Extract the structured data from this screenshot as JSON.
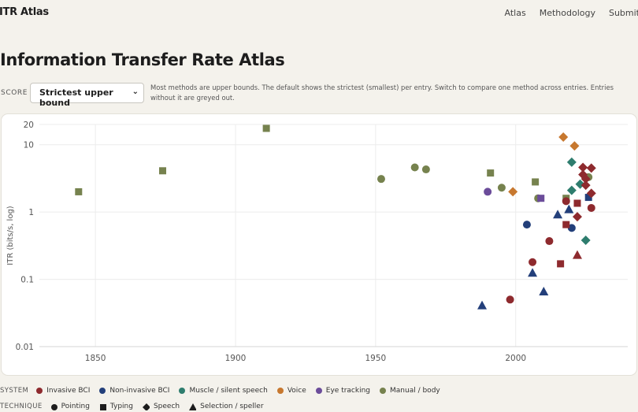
{
  "brand": "ITR Atlas",
  "nav": [
    "Atlas",
    "Methodology",
    "Submit"
  ],
  "title": "Information Transfer Rate Atlas",
  "score": {
    "label": "SCORE",
    "selected": "Strictest upper bound",
    "note": "Most methods are upper bounds. The default shows the strictest (smallest) per entry. Switch to compare one method across entries. Entries without it are greyed out."
  },
  "legend": {
    "system_label": "SYSTEM",
    "systems": [
      {
        "name": "Invasive BCI",
        "color": "#8e2a2e"
      },
      {
        "name": "Non-invasive BCI",
        "color": "#233f7a"
      },
      {
        "name": "Muscle / silent speech",
        "color": "#2e7d6e"
      },
      {
        "name": "Voice",
        "color": "#c7782f"
      },
      {
        "name": "Eye tracking",
        "color": "#6b4c9a"
      },
      {
        "name": "Manual / body",
        "color": "#76824e"
      }
    ],
    "technique_label": "TECHNIQUE",
    "techniques": [
      {
        "name": "Pointing",
        "shape": "circle"
      },
      {
        "name": "Typing",
        "shape": "square"
      },
      {
        "name": "Speech",
        "shape": "diamond"
      },
      {
        "name": "Selection / speller",
        "shape": "triangle"
      }
    ]
  },
  "chart_data": {
    "type": "scatter",
    "xlabel": "",
    "ylabel": "ITR (bits/s, log)",
    "xlim": [
      1830,
      2040
    ],
    "ylim": [
      0.01,
      20
    ],
    "yscale": "log",
    "xticks": [
      1850,
      1900,
      1950,
      2000
    ],
    "yticks": [
      {
        "v": 0.01,
        "label": "0.01"
      },
      {
        "v": 0.1,
        "label": "0.1"
      },
      {
        "v": 1,
        "label": "1"
      },
      {
        "v": 10,
        "label": "10"
      },
      {
        "v": 20,
        "label": "20"
      }
    ],
    "grid": true,
    "series": [
      {
        "system": "Manual / body",
        "color": "#76824e",
        "points": [
          {
            "x": 1844,
            "y": 2.0,
            "shape": "square"
          },
          {
            "x": 1874,
            "y": 4.1,
            "shape": "square"
          },
          {
            "x": 1911,
            "y": 17.5,
            "shape": "square"
          },
          {
            "x": 1952,
            "y": 3.1,
            "shape": "circle"
          },
          {
            "x": 1964,
            "y": 4.6,
            "shape": "circle"
          },
          {
            "x": 1968,
            "y": 4.3,
            "shape": "circle"
          },
          {
            "x": 1991,
            "y": 3.8,
            "shape": "square"
          },
          {
            "x": 1995,
            "y": 2.3,
            "shape": "circle"
          },
          {
            "x": 2007,
            "y": 2.8,
            "shape": "square"
          },
          {
            "x": 2008,
            "y": 1.6,
            "shape": "circle"
          },
          {
            "x": 2018,
            "y": 1.6,
            "shape": "square"
          },
          {
            "x": 2026,
            "y": 3.3,
            "shape": "circle"
          }
        ]
      },
      {
        "system": "Voice",
        "color": "#c7782f",
        "points": [
          {
            "x": 1999,
            "y": 2.0,
            "shape": "diamond"
          },
          {
            "x": 2017,
            "y": 13.0,
            "shape": "diamond"
          },
          {
            "x": 2021,
            "y": 9.6,
            "shape": "diamond"
          }
        ]
      },
      {
        "system": "Eye tracking",
        "color": "#6b4c9a",
        "points": [
          {
            "x": 1990,
            "y": 2.0,
            "shape": "circle"
          },
          {
            "x": 2009,
            "y": 1.6,
            "shape": "square"
          }
        ]
      },
      {
        "system": "Non-invasive BCI",
        "color": "#233f7a",
        "points": [
          {
            "x": 1988,
            "y": 0.041,
            "shape": "triangle"
          },
          {
            "x": 2004,
            "y": 0.65,
            "shape": "circle"
          },
          {
            "x": 2006,
            "y": 0.125,
            "shape": "triangle"
          },
          {
            "x": 2010,
            "y": 0.066,
            "shape": "triangle"
          },
          {
            "x": 2015,
            "y": 0.92,
            "shape": "triangle"
          },
          {
            "x": 2019,
            "y": 1.1,
            "shape": "triangle"
          },
          {
            "x": 2020,
            "y": 0.58,
            "shape": "circle"
          },
          {
            "x": 2026,
            "y": 1.65,
            "shape": "square"
          }
        ]
      },
      {
        "system": "Muscle / silent speech",
        "color": "#2e7d6e",
        "points": [
          {
            "x": 2020,
            "y": 5.5,
            "shape": "diamond"
          },
          {
            "x": 2020,
            "y": 2.1,
            "shape": "diamond"
          },
          {
            "x": 2023,
            "y": 2.6,
            "shape": "diamond"
          },
          {
            "x": 2025,
            "y": 0.38,
            "shape": "diamond"
          }
        ]
      },
      {
        "system": "Invasive BCI",
        "color": "#8e2a2e",
        "points": [
          {
            "x": 1998,
            "y": 0.05,
            "shape": "circle"
          },
          {
            "x": 2006,
            "y": 0.18,
            "shape": "circle"
          },
          {
            "x": 2012,
            "y": 0.37,
            "shape": "circle"
          },
          {
            "x": 2016,
            "y": 0.17,
            "shape": "square"
          },
          {
            "x": 2018,
            "y": 0.65,
            "shape": "square"
          },
          {
            "x": 2018,
            "y": 1.45,
            "shape": "circle"
          },
          {
            "x": 2022,
            "y": 0.85,
            "shape": "diamond"
          },
          {
            "x": 2022,
            "y": 0.23,
            "shape": "triangle"
          },
          {
            "x": 2022,
            "y": 1.35,
            "shape": "square"
          },
          {
            "x": 2024,
            "y": 4.6,
            "shape": "diamond"
          },
          {
            "x": 2024,
            "y": 3.6,
            "shape": "diamond"
          },
          {
            "x": 2025,
            "y": 3.1,
            "shape": "diamond"
          },
          {
            "x": 2025,
            "y": 2.5,
            "shape": "diamond"
          },
          {
            "x": 2027,
            "y": 4.5,
            "shape": "diamond"
          },
          {
            "x": 2027,
            "y": 1.9,
            "shape": "diamond"
          },
          {
            "x": 2027,
            "y": 1.15,
            "shape": "circle"
          }
        ]
      }
    ]
  }
}
